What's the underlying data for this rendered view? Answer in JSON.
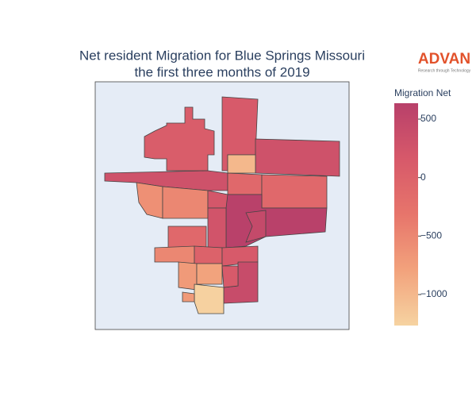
{
  "chart_data": {
    "type": "choropleth",
    "title_lines": [
      "Net resident Migration for Blue Springs Missouri",
      "the first three months of 2019"
    ],
    "colorbar_title": "Migration Net",
    "values": [
      100,
      150,
      300,
      -1000,
      300,
      -600,
      -500,
      -100,
      -100,
      200,
      620,
      450,
      250,
      -100,
      -500,
      0,
      150,
      -700,
      -800,
      400,
      150,
      -1250,
      -700
    ],
    "zlim": [
      -1265,
      636
    ],
    "zticks": [
      {
        "value": 500,
        "label": "500"
      },
      0,
      {
        "value": -500,
        "label": "−500"
      },
      {
        "value": -1000,
        "label": "−1000"
      }
    ],
    "colorscale": [
      "#f6d3a1",
      "#f2a27c",
      "#e7756b",
      "#d7596a",
      "#b8406a"
    ],
    "logo": {
      "name": "ADVAN",
      "tagline": "Research through Technology"
    }
  }
}
